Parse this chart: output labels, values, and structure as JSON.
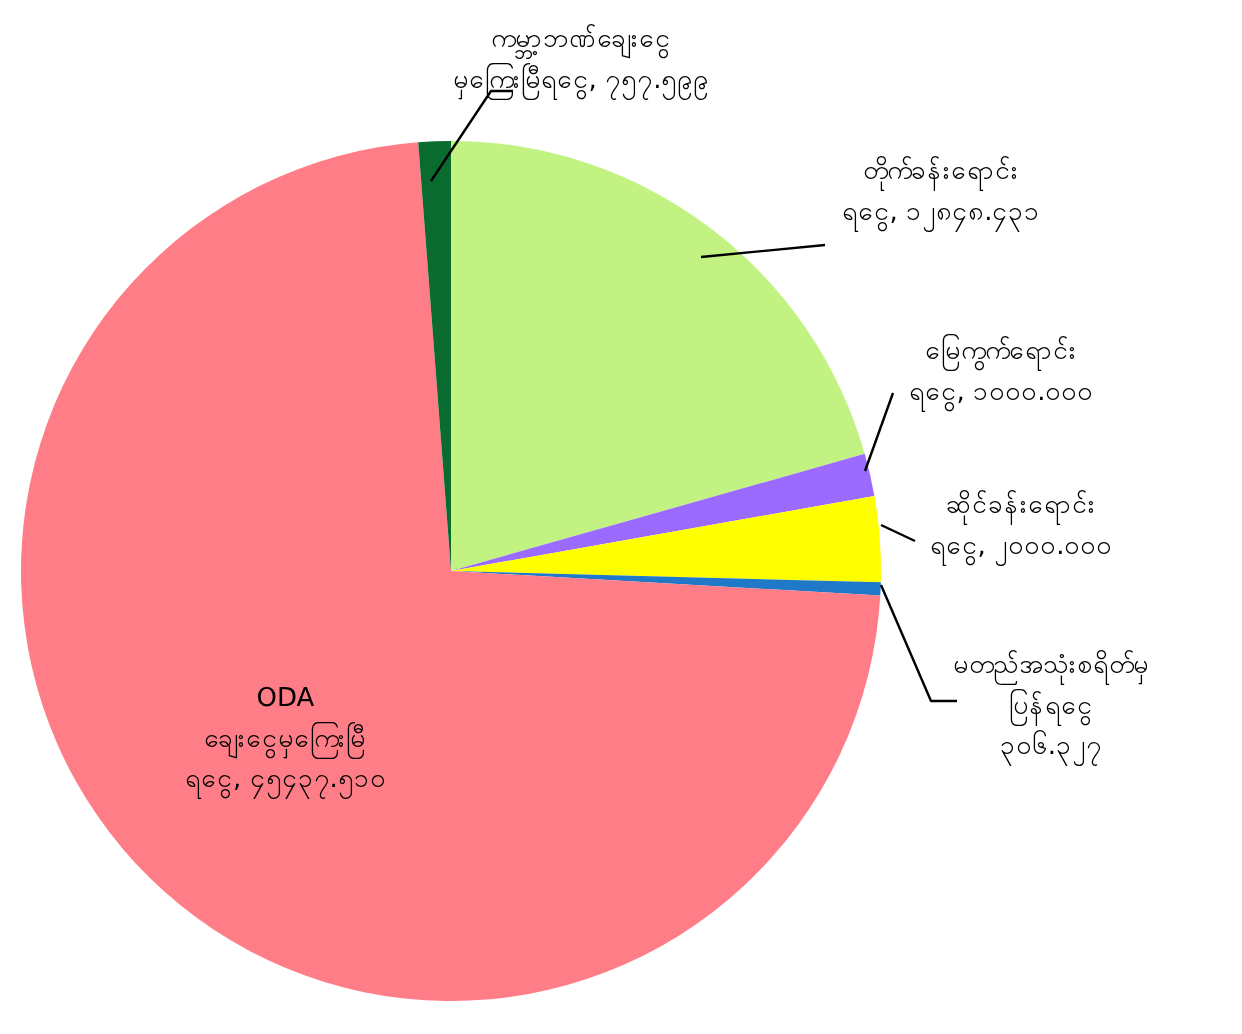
{
  "chart_data": {
    "type": "pie",
    "categories": [
      "တိုက်ခန်းရောင်း\nရငွေ",
      "မြေကွက်ရောင်း\nရငွေ",
      "ဆိုင်ခန်းရောင်း\nရငွေ",
      "မတည်အသုံးစရိတ်မှ\nပြန်ရငွေ",
      "ODA\nချေးငွေမှကြေးမြီ\nရငွေ",
      "ကမ္ဘာ့ဘဏ်ချေးငွေ\nမှကြေးမြီရငွေ"
    ],
    "values": [
      12848.431,
      1000,
      2000,
      306.327,
      45437.51,
      757.599
    ],
    "value_labels": [
      "၁၂၈၄၈.၄၃၁",
      "၁၀၀၀.၀၀၀",
      "၂၀၀၀.၀၀၀",
      "၃၀၆.၃၂၇",
      "၄၅၄၃၇.၅၁၀",
      "၇၅၇.၅၉၉"
    ],
    "colors": [
      "#c2f382",
      "#9b6bff",
      "#ffff00",
      "#1f78c8",
      "#ff7d86",
      "#0a6b2e"
    ]
  }
}
